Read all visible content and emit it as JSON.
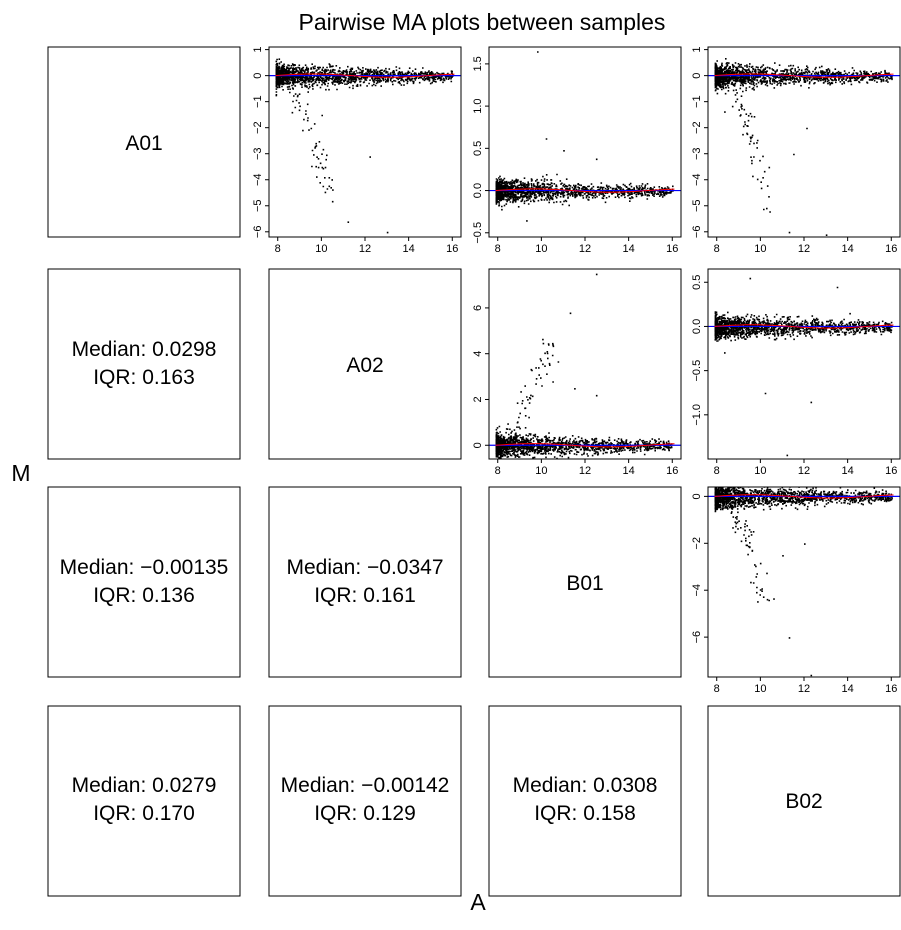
{
  "title": "Pairwise MA plots between samples",
  "xlabel": "A",
  "ylabel": "M",
  "colors": {
    "points": "#000000",
    "zero_line": "#0000ff",
    "loess_line": "#ff0000",
    "frame": "#000000"
  },
  "samples": [
    "A01",
    "A02",
    "B01",
    "B02"
  ],
  "stats": {
    "r1c0": {
      "median": "Median: 0.0298",
      "iqr": "IQR: 0.163"
    },
    "r2c0": {
      "median": "Median: −0.00135",
      "iqr": "IQR: 0.136"
    },
    "r2c1": {
      "median": "Median: −0.0347",
      "iqr": "IQR: 0.161"
    },
    "r3c0": {
      "median": "Median: 0.0279",
      "iqr": "IQR: 0.170"
    },
    "r3c1": {
      "median": "Median: −0.00142",
      "iqr": "IQR: 0.129"
    },
    "r3c2": {
      "median": "Median: 0.0308",
      "iqr": "IQR: 0.158"
    }
  },
  "chart_data": [
    {
      "type": "scatter",
      "pair": "A01 vs A02",
      "xlim": [
        7.6,
        16.4
      ],
      "ylim": [
        -6.2,
        1.1
      ],
      "x_ticks": [
        8,
        10,
        12,
        14,
        16
      ],
      "y_ticks": [
        -6,
        -5,
        -4,
        -3,
        -2,
        -1,
        0,
        1
      ],
      "x_tick_labels": [
        "8",
        "10",
        "12",
        "14",
        "16"
      ],
      "y_tick_labels": [
        "−6",
        "−5",
        "−4",
        "−3",
        "−2",
        "−1",
        "0",
        "1"
      ],
      "trail": {
        "from": [
          8.7,
          -0.4
        ],
        "to": [
          10.4,
          -4.6
        ]
      },
      "outliers": [
        [
          11.2,
          -5.6
        ],
        [
          13.0,
          -6.0
        ],
        [
          12.2,
          -3.1
        ],
        [
          9.5,
          -2.0
        ],
        [
          10.0,
          -1.5
        ]
      ]
    },
    {
      "type": "scatter",
      "pair": "A01 vs B01",
      "xlim": [
        7.6,
        16.4
      ],
      "ylim": [
        -0.55,
        1.7
      ],
      "x_ticks": [
        8,
        10,
        12,
        14,
        16
      ],
      "y_ticks": [
        -0.5,
        0.0,
        0.5,
        1.0,
        1.5
      ],
      "x_tick_labels": [
        "8",
        "10",
        "12",
        "14",
        "16"
      ],
      "y_tick_labels": [
        "−0.5",
        "0.0",
        "0.5",
        "1.0",
        "1.5"
      ],
      "outliers": [
        [
          9.8,
          1.65
        ],
        [
          10.2,
          0.62
        ],
        [
          11.0,
          0.48
        ],
        [
          9.3,
          -0.35
        ],
        [
          12.5,
          0.38
        ]
      ]
    },
    {
      "type": "scatter",
      "pair": "A01 vs B02",
      "xlim": [
        7.6,
        16.4
      ],
      "ylim": [
        -6.2,
        1.1
      ],
      "x_ticks": [
        8,
        10,
        12,
        14,
        16
      ],
      "y_ticks": [
        -6,
        -5,
        -4,
        -3,
        -2,
        -1,
        0,
        1
      ],
      "x_tick_labels": [
        "8",
        "10",
        "12",
        "14",
        "16"
      ],
      "y_tick_labels": [
        "−6",
        "−5",
        "−4",
        "−3",
        "−2",
        "−1",
        "0",
        "1"
      ],
      "trail": {
        "from": [
          8.7,
          -0.4
        ],
        "to": [
          10.4,
          -4.6
        ]
      },
      "outliers": [
        [
          11.3,
          -6.0
        ],
        [
          13.0,
          -6.1
        ],
        [
          11.5,
          -3.0
        ],
        [
          12.1,
          -2.0
        ]
      ]
    },
    {
      "type": "scatter",
      "pair": "A02 vs B01",
      "xlim": [
        7.6,
        16.4
      ],
      "ylim": [
        -0.6,
        7.7
      ],
      "x_ticks": [
        8,
        10,
        12,
        14,
        16
      ],
      "y_ticks": [
        0,
        2,
        4,
        6
      ],
      "x_tick_labels": [
        "8",
        "10",
        "12",
        "14",
        "16"
      ],
      "y_tick_labels": [
        "0",
        "2",
        "4",
        "6"
      ],
      "trail": {
        "from": [
          8.5,
          0.3
        ],
        "to": [
          10.6,
          4.6
        ]
      },
      "outliers": [
        [
          12.5,
          7.5
        ],
        [
          11.3,
          5.8
        ],
        [
          11.5,
          2.5
        ],
        [
          12.5,
          2.2
        ],
        [
          10.5,
          2.8
        ]
      ]
    },
    {
      "type": "scatter",
      "pair": "A02 vs B02",
      "xlim": [
        7.6,
        16.4
      ],
      "ylim": [
        -1.5,
        0.65
      ],
      "x_ticks": [
        8,
        10,
        12,
        14,
        16
      ],
      "y_ticks": [
        -1.0,
        -0.5,
        0.0,
        0.5
      ],
      "x_tick_labels": [
        "8",
        "10",
        "12",
        "14",
        "16"
      ],
      "y_tick_labels": [
        "−1.0",
        "−0.5",
        "0.0",
        "0.5"
      ],
      "outliers": [
        [
          11.2,
          -1.45
        ],
        [
          12.3,
          -0.85
        ],
        [
          10.2,
          -0.75
        ],
        [
          9.5,
          0.55
        ],
        [
          13.5,
          0.45
        ]
      ]
    },
    {
      "type": "scatter",
      "pair": "B01 vs B02",
      "xlim": [
        7.6,
        16.4
      ],
      "ylim": [
        -7.7,
        0.4
      ],
      "x_ticks": [
        8,
        10,
        12,
        14,
        16
      ],
      "y_ticks": [
        -6,
        -4,
        -2,
        0
      ],
      "x_tick_labels": [
        "8",
        "10",
        "12",
        "14",
        "16"
      ],
      "y_tick_labels": [
        "−6",
        "−4",
        "−2",
        "0"
      ],
      "trail": {
        "from": [
          8.7,
          -0.4
        ],
        "to": [
          10.4,
          -4.6
        ]
      },
      "outliers": [
        [
          11.3,
          -6.0
        ],
        [
          12.3,
          -7.6
        ],
        [
          11.0,
          -2.5
        ],
        [
          12.0,
          -2.0
        ]
      ]
    }
  ]
}
